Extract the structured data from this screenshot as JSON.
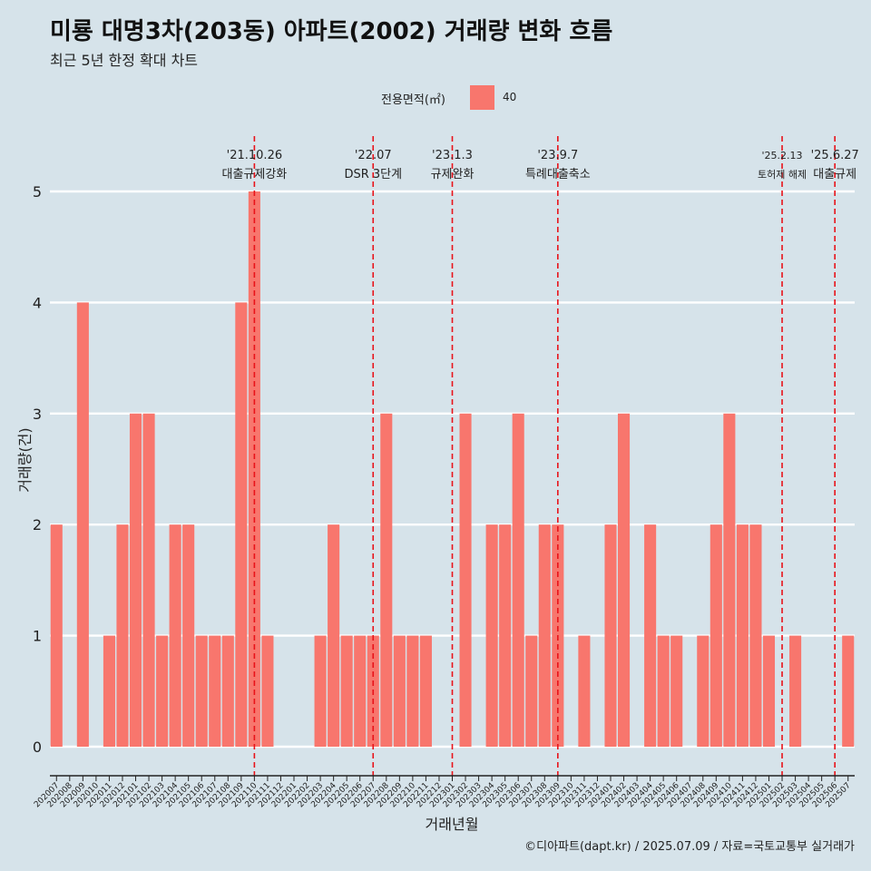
{
  "title": "미룡 대명3차(203동) 아파트(2002) 거래량 변화 흐름",
  "subtitle": "최근 5년 한정 확대 차트",
  "caption": "©디아파트(dapt.kr) / 2025.07.09 / 자료=국토교통부 실거래가",
  "legend": {
    "title": "전용면적(㎡)",
    "label": "40",
    "color": "#f8766d"
  },
  "chart_data": {
    "type": "bar",
    "xlabel": "거래년월",
    "ylabel": "거래량(건)",
    "ylim": [
      0,
      5
    ],
    "yticks": [
      0,
      1,
      2,
      3,
      4,
      5
    ],
    "grid": true,
    "bar_color": "#f8766d",
    "categories": [
      "202007",
      "202008",
      "202009",
      "202010",
      "202011",
      "202012",
      "202101",
      "202102",
      "202103",
      "202104",
      "202105",
      "202106",
      "202107",
      "202108",
      "202109",
      "202110",
      "202111",
      "202112",
      "202201",
      "202202",
      "202203",
      "202204",
      "202205",
      "202206",
      "202207",
      "202208",
      "202209",
      "202210",
      "202211",
      "202212",
      "202301",
      "202302",
      "202303",
      "202304",
      "202305",
      "202306",
      "202307",
      "202308",
      "202309",
      "202310",
      "202311",
      "202312",
      "202401",
      "202402",
      "202403",
      "202404",
      "202405",
      "202406",
      "202407",
      "202408",
      "202409",
      "202410",
      "202411",
      "202412",
      "202501",
      "202502",
      "202503",
      "202504",
      "202505",
      "202506",
      "202507"
    ],
    "values": [
      2,
      0,
      4,
      0,
      1,
      2,
      3,
      3,
      1,
      2,
      2,
      1,
      1,
      1,
      4,
      5,
      1,
      null,
      null,
      null,
      1,
      2,
      1,
      1,
      1,
      3,
      1,
      1,
      1,
      null,
      null,
      3,
      0,
      2,
      2,
      3,
      1,
      2,
      2,
      null,
      1,
      0,
      2,
      3,
      null,
      2,
      1,
      1,
      null,
      1,
      2,
      3,
      2,
      2,
      1,
      null,
      1,
      null,
      null,
      null,
      1
    ],
    "annotations": [
      {
        "category": "202110",
        "date": "'21.10.26",
        "label": "대출규제강화"
      },
      {
        "category": "202207",
        "date": "'22.07",
        "label": "DSR 3단계"
      },
      {
        "category": "202301",
        "date": "'23.1.3",
        "label": "규제완화"
      },
      {
        "category": "202309",
        "date": "'23.9.7",
        "label": "특례대출축소"
      },
      {
        "category": "202502",
        "date": "'25.2.13",
        "label": "토허제 해제"
      },
      {
        "category": "202506",
        "date": "'25.6.27",
        "label": "대출규제"
      }
    ]
  }
}
